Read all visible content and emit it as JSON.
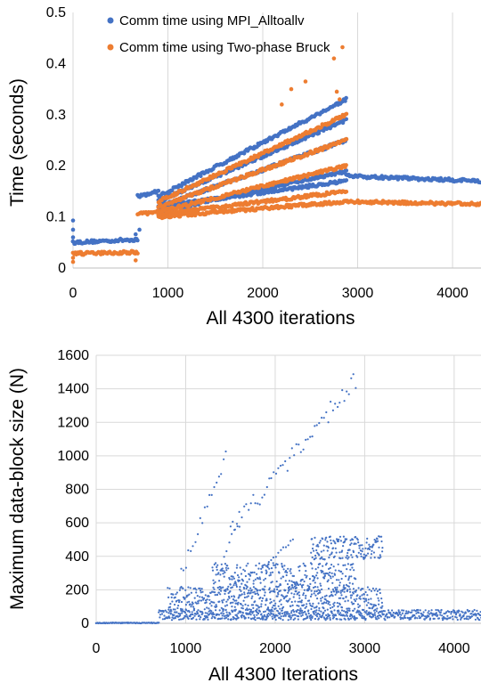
{
  "chart_data": [
    {
      "type": "scatter",
      "xlabel": "All 4300 iterations",
      "ylabel": "Time (seconds)",
      "xlim": [
        0,
        4300
      ],
      "ylim": [
        0,
        0.5
      ],
      "xticks": [
        "0",
        "1000",
        "2000",
        "3000",
        "4000"
      ],
      "yticks": [
        "0",
        "0.1",
        "0.2",
        "0.3",
        "0.4",
        "0.5"
      ],
      "grid": "vertical",
      "legend_position": "top-center",
      "series": [
        {
          "name": "Comm time using MPI_Alltoallv",
          "color": "#4472c4",
          "bands": [
            {
              "x": [
                0,
                680
              ],
              "y": [
                0.05,
                0.056
              ]
            },
            {
              "x": [
                680,
                900
              ],
              "y": [
                0.14,
                0.15
              ]
            },
            {
              "x": [
                900,
                2880
              ],
              "y": [
                0.14,
                0.33
              ]
            },
            {
              "x": [
                900,
                2880
              ],
              "y": [
                0.13,
                0.29
              ]
            },
            {
              "x": [
                900,
                2880
              ],
              "y": [
                0.12,
                0.25
              ]
            },
            {
              "x": [
                900,
                2880
              ],
              "y": [
                0.11,
                0.19
              ]
            },
            {
              "x": [
                900,
                2880
              ],
              "y": [
                0.12,
                0.17
              ]
            },
            {
              "x": [
                2880,
                4300
              ],
              "y": [
                0.18,
                0.17
              ]
            }
          ],
          "outliers": [
            [
              0,
              0.093
            ],
            [
              0,
              0.075
            ],
            [
              0,
              0.06
            ],
            [
              660,
              0.066
            ],
            [
              700,
              0.075
            ]
          ]
        },
        {
          "name": "Comm time using Two-phase Bruck",
          "color": "#ed7d31",
          "bands": [
            {
              "x": [
                0,
                680
              ],
              "y": [
                0.028,
                0.031
              ]
            },
            {
              "x": [
                680,
                900
              ],
              "y": [
                0.105,
                0.11
              ]
            },
            {
              "x": [
                900,
                2880
              ],
              "y": [
                0.13,
                0.3
              ]
            },
            {
              "x": [
                900,
                2880
              ],
              "y": [
                0.12,
                0.25
              ]
            },
            {
              "x": [
                900,
                2880
              ],
              "y": [
                0.11,
                0.2
              ]
            },
            {
              "x": [
                900,
                2880
              ],
              "y": [
                0.105,
                0.15
              ]
            },
            {
              "x": [
                900,
                2880
              ],
              "y": [
                0.1,
                0.13
              ]
            },
            {
              "x": [
                2880,
                4300
              ],
              "y": [
                0.13,
                0.125
              ]
            }
          ],
          "outliers": [
            [
              2840,
              0.432
            ],
            [
              2750,
              0.41
            ],
            [
              2450,
              0.365
            ],
            [
              2780,
              0.345
            ],
            [
              2200,
              0.32
            ],
            [
              2810,
              0.33
            ],
            [
              0,
              0.02
            ],
            [
              0,
              0.012
            ],
            [
              660,
              0.015
            ],
            [
              2300,
              0.35
            ]
          ]
        }
      ]
    },
    {
      "type": "scatter",
      "xlabel": "All 4300 Iterations",
      "ylabel": "Maximum data-block size (N)",
      "xlim": [
        0,
        4300
      ],
      "ylim": [
        0,
        1600
      ],
      "xticks": [
        "0",
        "1000",
        "2000",
        "3000",
        "4000"
      ],
      "yticks": [
        "0",
        "200",
        "400",
        "600",
        "800",
        "1000",
        "1200",
        "1400",
        "1600"
      ],
      "grid": "both",
      "series": [
        {
          "color": "#4472c4",
          "bands": [
            {
              "x": [
                0,
                700
              ],
              "y": [
                0,
                0
              ],
              "kind": "flat"
            },
            {
              "x": [
                700,
                4300
              ],
              "y": [
                20,
                80
              ],
              "kind": "fill"
            },
            {
              "x": [
                800,
                3200
              ],
              "y": [
                80,
                220
              ],
              "kind": "fill"
            },
            {
              "x": [
                1300,
                2900
              ],
              "y": [
                180,
                360
              ],
              "kind": "fill"
            },
            {
              "x": [
                2400,
                3200
              ],
              "y": [
                380,
                520
              ],
              "kind": "fill"
            },
            {
              "x": [
                950,
                1450
              ],
              "y": [
                300,
                1000
              ],
              "kind": "line"
            },
            {
              "x": [
                1500,
                2900
              ],
              "y": [
                550,
                1450
              ],
              "kind": "line"
            },
            {
              "x": [
                1400,
                1600
              ],
              "y": [
                350,
                650
              ],
              "kind": "line"
            },
            {
              "x": [
                1900,
                2200
              ],
              "y": [
                350,
                500
              ],
              "kind": "line"
            }
          ]
        }
      ]
    }
  ]
}
